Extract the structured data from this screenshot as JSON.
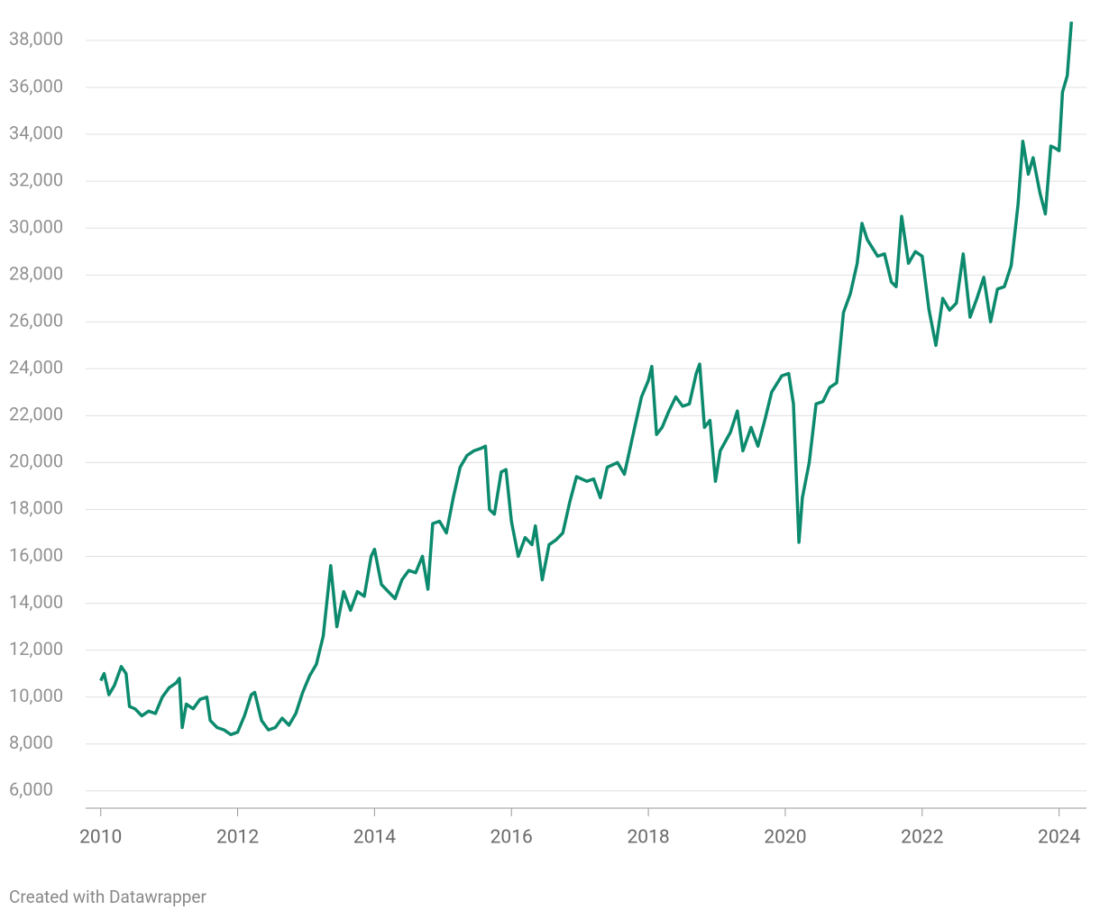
{
  "chart_data": {
    "type": "line",
    "footer": "Created with Datawrapper",
    "x": [
      2010.0,
      2010.05,
      2010.12,
      2010.2,
      2010.3,
      2010.37,
      2010.42,
      2010.5,
      2010.6,
      2010.7,
      2010.8,
      2010.9,
      2011.0,
      2011.1,
      2011.15,
      2011.19,
      2011.25,
      2011.35,
      2011.45,
      2011.55,
      2011.6,
      2011.7,
      2011.8,
      2011.9,
      2012.0,
      2012.1,
      2012.2,
      2012.25,
      2012.35,
      2012.45,
      2012.55,
      2012.65,
      2012.75,
      2012.85,
      2012.95,
      2013.05,
      2013.15,
      2013.25,
      2013.36,
      2013.45,
      2013.55,
      2013.65,
      2013.75,
      2013.85,
      2013.95,
      2014.0,
      2014.1,
      2014.2,
      2014.3,
      2014.4,
      2014.5,
      2014.6,
      2014.7,
      2014.78,
      2014.85,
      2014.95,
      2015.05,
      2015.15,
      2015.25,
      2015.35,
      2015.45,
      2015.55,
      2015.62,
      2015.68,
      2015.75,
      2015.85,
      2015.92,
      2016.0,
      2016.1,
      2016.2,
      2016.3,
      2016.35,
      2016.45,
      2016.55,
      2016.65,
      2016.75,
      2016.85,
      2016.95,
      2017.1,
      2017.2,
      2017.3,
      2017.4,
      2017.55,
      2017.65,
      2017.8,
      2017.9,
      2018.0,
      2018.05,
      2018.12,
      2018.2,
      2018.3,
      2018.4,
      2018.5,
      2018.6,
      2018.7,
      2018.75,
      2018.82,
      2018.9,
      2018.98,
      2019.05,
      2019.2,
      2019.3,
      2019.38,
      2019.5,
      2019.6,
      2019.7,
      2019.8,
      2019.95,
      2020.05,
      2020.12,
      2020.2,
      2020.25,
      2020.35,
      2020.45,
      2020.55,
      2020.65,
      2020.75,
      2020.85,
      2020.95,
      2021.05,
      2021.12,
      2021.2,
      2021.35,
      2021.45,
      2021.55,
      2021.62,
      2021.7,
      2021.8,
      2021.9,
      2022.0,
      2022.1,
      2022.2,
      2022.3,
      2022.4,
      2022.5,
      2022.6,
      2022.7,
      2022.8,
      2022.9,
      2023.0,
      2023.1,
      2023.2,
      2023.3,
      2023.4,
      2023.47,
      2023.55,
      2023.62,
      2023.72,
      2023.8,
      2023.88,
      2023.95,
      2024.0,
      2024.05,
      2024.12,
      2024.18
    ],
    "series": [
      {
        "color": "#0c8a6d",
        "values": [
          10700,
          11000,
          10100,
          10500,
          11300,
          11000,
          9600,
          9500,
          9200,
          9400,
          9300,
          10000,
          10400,
          10600,
          10800,
          8700,
          9700,
          9500,
          9900,
          10000,
          9000,
          8700,
          8600,
          8400,
          8500,
          9200,
          10100,
          10200,
          9000,
          8600,
          8700,
          9100,
          8800,
          9300,
          10200,
          10900,
          11400,
          12600,
          15600,
          13000,
          14500,
          13700,
          14500,
          14300,
          16000,
          16300,
          14800,
          14500,
          14200,
          15000,
          15400,
          15300,
          16000,
          14600,
          17400,
          17500,
          17000,
          18500,
          19800,
          20300,
          20500,
          20600,
          20700,
          18000,
          17800,
          19600,
          19700,
          17500,
          16000,
          16800,
          16500,
          17300,
          15000,
          16500,
          16700,
          17000,
          18300,
          19400,
          19200,
          19300,
          18500,
          19800,
          20000,
          19500,
          21500,
          22800,
          23500,
          24100,
          21200,
          21500,
          22200,
          22800,
          22400,
          22500,
          23800,
          24200,
          21500,
          21800,
          19200,
          20500,
          21300,
          22200,
          20500,
          21500,
          20700,
          21800,
          23000,
          23700,
          23800,
          22500,
          16600,
          18500,
          20000,
          22500,
          22600,
          23200,
          23400,
          26400,
          27200,
          28500,
          30200,
          29500,
          28800,
          28900,
          27700,
          27500,
          30500,
          28500,
          29000,
          28800,
          26500,
          25000,
          27000,
          26500,
          26800,
          28900,
          26200,
          27000,
          27900,
          26000,
          27400,
          27500,
          28400,
          31000,
          33700,
          32300,
          33000,
          31500,
          30600,
          33500,
          33400,
          33300,
          35800,
          36500,
          38800
        ]
      }
    ],
    "xlim": [
      2009.78,
      2024.4
    ],
    "xticks": [
      2010,
      2012,
      2014,
      2016,
      2018,
      2020,
      2022,
      2024
    ],
    "ylim": [
      5300,
      39150
    ],
    "yticks": [
      {
        "value": 6000,
        "label": "6,000"
      },
      {
        "value": 8000,
        "label": "8,000"
      },
      {
        "value": 10000,
        "label": "10,000"
      },
      {
        "value": 12000,
        "label": "12,000"
      },
      {
        "value": 14000,
        "label": "14,000"
      },
      {
        "value": 16000,
        "label": "16,000"
      },
      {
        "value": 18000,
        "label": "18,000"
      },
      {
        "value": 20000,
        "label": "20,000"
      },
      {
        "value": 22000,
        "label": "22,000"
      },
      {
        "value": 24000,
        "label": "24,000"
      },
      {
        "value": 26000,
        "label": "26,000"
      },
      {
        "value": 28000,
        "label": "28,000"
      },
      {
        "value": 30000,
        "label": "30,000"
      },
      {
        "value": 32000,
        "label": "32,000"
      },
      {
        "value": 34000,
        "label": "34,000"
      },
      {
        "value": 36000,
        "label": "36,000"
      },
      {
        "value": 38000,
        "label": "38,000"
      }
    ],
    "grid": true
  }
}
